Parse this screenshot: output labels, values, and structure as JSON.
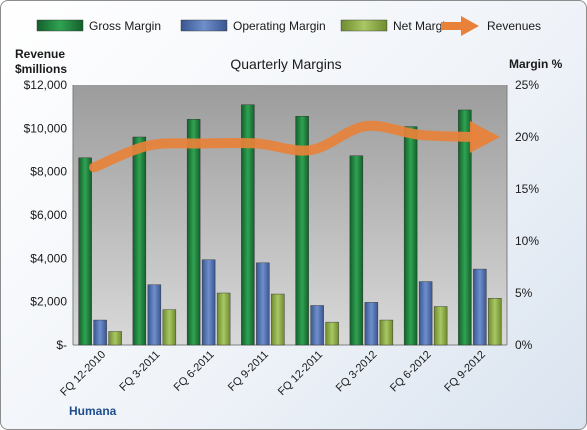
{
  "chart_data": {
    "type": "bar",
    "title": "Quarterly Margins",
    "company": "Humana",
    "y_left_label": [
      "Revenue",
      "$millions"
    ],
    "y_right_label": "Margin %",
    "categories": [
      "FQ 12-2010",
      "FQ 3-2011",
      "FQ 6-2011",
      "FQ 9-2011",
      "FQ 12-2011",
      "FQ 3-2012",
      "FQ 6-2012",
      "FQ 9-2012"
    ],
    "ylim_left": [
      0,
      12000
    ],
    "ylim_right": [
      0,
      25
    ],
    "left_ticks": [
      "$-",
      "$2,000",
      "$4,000",
      "$6,000",
      "$8,000",
      "$10,000",
      "$12,000"
    ],
    "right_ticks": [
      "0%",
      "5%",
      "10%",
      "15%",
      "20%",
      "25%"
    ],
    "series": [
      {
        "name": "Gross Margin",
        "axis": "right",
        "type": "bar",
        "color": "#1e7a3a",
        "values": [
          18.0,
          20.0,
          21.7,
          23.1,
          22.0,
          18.2,
          21.0,
          22.6
        ]
      },
      {
        "name": "Operating Margin",
        "axis": "right",
        "type": "bar",
        "color": "#4a6aa8",
        "values": [
          2.4,
          5.8,
          8.2,
          7.9,
          3.8,
          4.1,
          6.1,
          7.3
        ]
      },
      {
        "name": "Net Margin",
        "axis": "right",
        "type": "bar",
        "color": "#8aa843",
        "values": [
          1.3,
          3.4,
          5.0,
          4.9,
          2.2,
          2.4,
          3.7,
          4.5
        ]
      },
      {
        "name": "Revenues",
        "axis": "left",
        "type": "line",
        "color": "#e8823a",
        "values": [
          8200,
          9200,
          9300,
          9300,
          9000,
          10100,
          9700,
          9600
        ]
      }
    ],
    "grid": false,
    "legend": "top"
  }
}
